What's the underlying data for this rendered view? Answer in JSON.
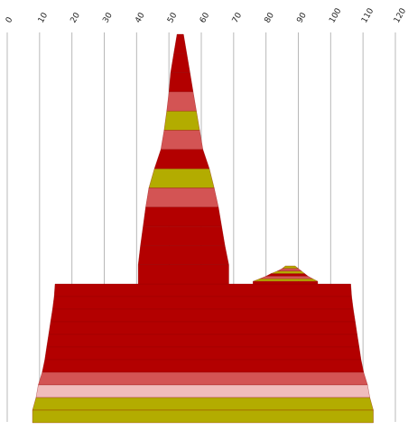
{
  "chart_data": {
    "type": "area",
    "title": "",
    "xlabel": "",
    "ylabel": "",
    "xlim": [
      0,
      120
    ],
    "grid": true,
    "tick_labels": [
      "0",
      "10",
      "20",
      "30",
      "40",
      "50",
      "60",
      "70",
      "80",
      "90",
      "100",
      "110",
      "120"
    ],
    "colors": {
      "dark_red": "#b30000",
      "salmon": "#d35454",
      "olive": "#b3ac00",
      "pink": "#f0bcbc",
      "grid": "#b8b8b8"
    },
    "shapes": [
      {
        "name": "base-block",
        "segments": [
          {
            "color": "dark_red",
            "left": 14.8,
            "right": 106.2
          },
          {
            "color": "dark_red",
            "left": 14.5,
            "right": 106.5
          },
          {
            "color": "dark_red",
            "left": 14.0,
            "right": 107.0
          },
          {
            "color": "dark_red",
            "left": 13.4,
            "right": 107.6
          },
          {
            "color": "dark_red",
            "left": 12.8,
            "right": 108.2
          },
          {
            "color": "dark_red",
            "left": 12.2,
            "right": 108.8
          },
          {
            "color": "dark_red",
            "left": 11.6,
            "right": 109.4
          },
          {
            "color": "salmon",
            "left": 10.8,
            "right": 110.2
          },
          {
            "color": "pink",
            "left": 9.6,
            "right": 111.4
          },
          {
            "color": "olive",
            "left": 8.9,
            "right": 112.1
          },
          {
            "color": "olive",
            "left": 7.8,
            "right": 113.2
          }
        ]
      },
      {
        "name": "tall-peak",
        "segments": [
          {
            "color": "dark_red",
            "left": 52.5,
            "right": 54.5
          },
          {
            "color": "dark_red",
            "left": 51.5,
            "right": 55.5
          },
          {
            "color": "dark_red",
            "left": 50.5,
            "right": 56.5
          },
          {
            "color": "salmon",
            "left": 50.0,
            "right": 57.5
          },
          {
            "color": "olive",
            "left": 49.3,
            "right": 58.5
          },
          {
            "color": "salmon",
            "left": 48.5,
            "right": 59.5
          },
          {
            "color": "dark_red",
            "left": 47.5,
            "right": 60.5
          },
          {
            "color": "olive",
            "left": 45.5,
            "right": 62.5
          },
          {
            "color": "salmon",
            "left": 43.8,
            "right": 64.0
          },
          {
            "color": "dark_red",
            "left": 42.8,
            "right": 65.3
          },
          {
            "color": "dark_red",
            "left": 42.0,
            "right": 66.3
          },
          {
            "color": "dark_red",
            "left": 41.2,
            "right": 67.3
          },
          {
            "color": "dark_red",
            "left": 40.5,
            "right": 68.5
          }
        ]
      },
      {
        "name": "small-hump",
        "segments": [
          {
            "color": "olive",
            "left": 86.0,
            "right": 89.0
          },
          {
            "color": "salmon",
            "left": 85.0,
            "right": 90.0
          },
          {
            "color": "olive",
            "left": 83.5,
            "right": 91.0
          },
          {
            "color": "dark_red",
            "left": 81.5,
            "right": 92.0
          },
          {
            "color": "salmon",
            "left": 80.0,
            "right": 93.0
          },
          {
            "color": "olive",
            "left": 78.0,
            "right": 94.5
          },
          {
            "color": "dark_red",
            "left": 76.0,
            "right": 96.0
          }
        ]
      }
    ]
  }
}
